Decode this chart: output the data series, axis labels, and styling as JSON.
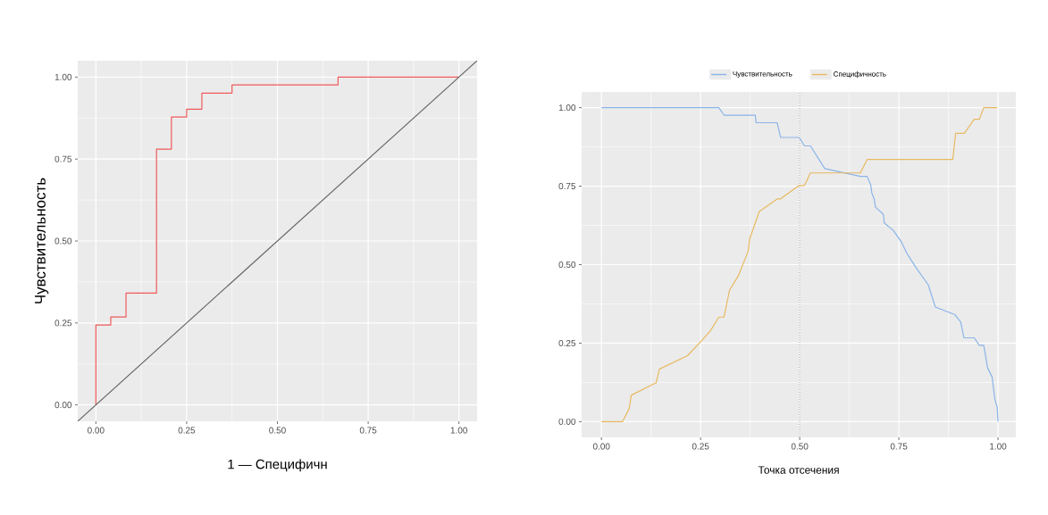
{
  "chart_data": [
    {
      "type": "step",
      "xlabel": "1 — Специфичн",
      "ylabel": "Чувствительность",
      "xlim": [
        -0.05,
        1.05
      ],
      "ylim": [
        -0.05,
        1.05
      ],
      "xticks": [
        {
          "value": 0,
          "label": "0.00"
        },
        {
          "value": 0.25,
          "label": "0.25"
        },
        {
          "value": 0.5,
          "label": "0.50"
        },
        {
          "value": 0.75,
          "label": "0.75"
        },
        {
          "value": 1,
          "label": "1.00"
        }
      ],
      "yticks": [
        {
          "value": 0,
          "label": "0.00"
        },
        {
          "value": 0.25,
          "label": "0.25"
        },
        {
          "value": 0.5,
          "label": "0.50"
        },
        {
          "value": 0.75,
          "label": "0.75"
        },
        {
          "value": 1,
          "label": "1.00"
        }
      ],
      "grid": true,
      "series": [
        {
          "type": "step",
          "color": "#f05a5a",
          "x": [
            0,
            0,
            0.041,
            0.083,
            0.167,
            0.208,
            0.25,
            0.292,
            0.375,
            0.667,
            1
          ],
          "values": [
            0,
            0.244,
            0.268,
            0.341,
            0.78,
            0.878,
            0.902,
            0.951,
            0.976,
            1,
            1
          ]
        },
        {
          "type": "line",
          "color": "#666666",
          "x": [
            -0.05,
            1.05
          ],
          "values": [
            -0.05,
            1.05
          ]
        }
      ]
    },
    {
      "type": "line",
      "xlabel": "Точка отсечения",
      "xlim": [
        -0.05,
        1.045
      ],
      "ylim": [
        -0.05,
        1.05
      ],
      "xticks": [
        {
          "value": 0,
          "label": "0.00"
        },
        {
          "value": 0.25,
          "label": "0.25"
        },
        {
          "value": 0.5,
          "label": "0.50"
        },
        {
          "value": 0.75,
          "label": "0.75"
        },
        {
          "value": 1,
          "label": "1.00"
        }
      ],
      "yticks": [
        {
          "value": 0,
          "label": "0.00"
        },
        {
          "value": 0.25,
          "label": "0.25"
        },
        {
          "value": 0.5,
          "label": "0.50"
        },
        {
          "value": 0.75,
          "label": "0.75"
        },
        {
          "value": 1,
          "label": "1.00"
        }
      ],
      "grid": true,
      "legend": "top",
      "ref_lines": [
        {
          "axis": "x",
          "value": 0.5,
          "color": "#555555",
          "line_style": "dotted"
        }
      ],
      "series": [
        {
          "name": "Чувствительность",
          "color": "#8ab4e8",
          "x": [
            0,
            0.296,
            0.309,
            0.388,
            0.39,
            0.443,
            0.452,
            0.496,
            0.5,
            0.512,
            0.527,
            0.563,
            0.653,
            0.67,
            0.679,
            0.682,
            0.688,
            0.691,
            0.711,
            0.713,
            0.736,
            0.756,
            0.771,
            0.794,
            0.824,
            0.842,
            0.891,
            0.906,
            0.914,
            0.94,
            0.953,
            0.964,
            0.974,
            0.985,
            0.992,
            0.998,
            1
          ],
          "values": [
            1,
            1,
            0.976,
            0.976,
            0.952,
            0.952,
            0.905,
            0.905,
            0.903,
            0.878,
            0.878,
            0.806,
            0.781,
            0.781,
            0.754,
            0.727,
            0.708,
            0.683,
            0.66,
            0.633,
            0.609,
            0.573,
            0.534,
            0.489,
            0.436,
            0.365,
            0.341,
            0.317,
            0.267,
            0.267,
            0.243,
            0.243,
            0.17,
            0.143,
            0.072,
            0.046,
            0
          ]
        },
        {
          "name": "Специфичность",
          "color": "#e8b960",
          "x": [
            0,
            0.053,
            0.07,
            0.075,
            0.138,
            0.146,
            0.217,
            0.247,
            0.274,
            0.296,
            0.309,
            0.323,
            0.345,
            0.37,
            0.374,
            0.398,
            0.443,
            0.451,
            0.496,
            0.5,
            0.512,
            0.527,
            0.653,
            0.67,
            0.886,
            0.893,
            0.915,
            0.94,
            0.953,
            0.964,
            0.998
          ],
          "values": [
            0,
            0,
            0.042,
            0.084,
            0.124,
            0.167,
            0.21,
            0.25,
            0.288,
            0.333,
            0.333,
            0.419,
            0.464,
            0.543,
            0.583,
            0.669,
            0.709,
            0.709,
            0.75,
            0.752,
            0.752,
            0.792,
            0.792,
            0.835,
            0.835,
            0.918,
            0.918,
            0.963,
            0.963,
            1,
            1
          ]
        }
      ]
    }
  ]
}
